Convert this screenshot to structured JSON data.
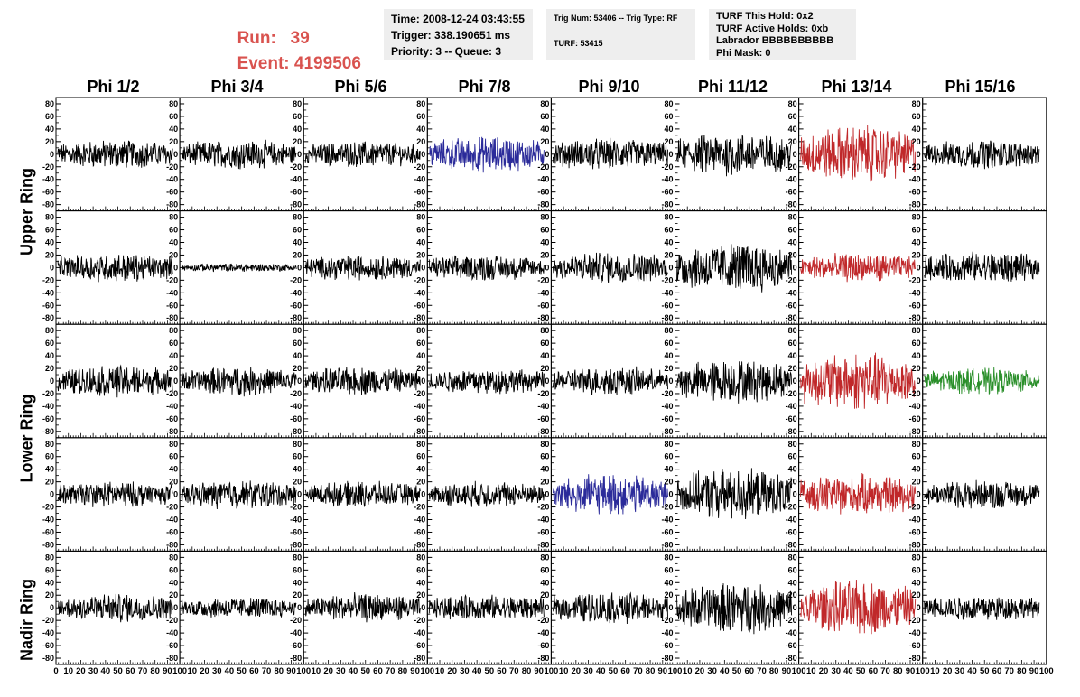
{
  "header": {
    "run_label": "Run:",
    "run_value": "39",
    "event_label": "Event:",
    "event_value": "4199506"
  },
  "info": {
    "time": "Time: 2008-12-24 03:43:55",
    "trigger": "Trigger: 338.190651 ms",
    "priority": "Priority: 3 -- Queue: 3",
    "trig_num": "Trig Num: 53406 -- Trig Type: RF",
    "turf": "TURF: 53415",
    "turf_hold": "TURF This Hold: 0x2",
    "turf_active": "TURF Active Holds: 0xb",
    "labrador": "Labrador BBBBBBBBBB",
    "phi_mask": "Phi Mask: 0"
  },
  "colors": {
    "default": "#000000",
    "blue": "#2b2b9a",
    "red": "#c0282a",
    "green": "#2a8f2a",
    "header_red": "#d9534f"
  },
  "chart_data": {
    "type": "line",
    "columns": [
      "Phi 1/2",
      "Phi 3/4",
      "Phi 5/6",
      "Phi 7/8",
      "Phi 9/10",
      "Phi 11/12",
      "Phi 13/14",
      "Phi 15/16"
    ],
    "rows": [
      "Upper Ring",
      "Upper Ring",
      "Lower Ring",
      "Lower Ring",
      "Nadir Ring"
    ],
    "row_labels": [
      "Upper Ring",
      "Lower Ring",
      "Nadir Ring"
    ],
    "ylim": [
      -90,
      90
    ],
    "yticks": [
      -80,
      -60,
      -40,
      -20,
      0,
      20,
      40,
      60,
      80
    ],
    "xlim": [
      0,
      100
    ],
    "xtick_labels": [
      "0",
      "10",
      "20",
      "30",
      "40",
      "50",
      "60",
      "70",
      "80",
      "90",
      "100"
    ],
    "panel_colors": [
      [
        "default",
        "default",
        "default",
        "blue",
        "default",
        "default",
        "red",
        "default"
      ],
      [
        "default",
        "default",
        "default",
        "default",
        "default",
        "default",
        "red",
        "default"
      ],
      [
        "default",
        "default",
        "default",
        "default",
        "default",
        "default",
        "red",
        "green"
      ],
      [
        "default",
        "default",
        "default",
        "default",
        "blue",
        "default",
        "red",
        "default"
      ],
      [
        "default",
        "default",
        "default",
        "default",
        "default",
        "default",
        "red",
        "default"
      ]
    ],
    "panel_amplitude": [
      [
        20,
        20,
        18,
        25,
        22,
        30,
        40,
        20
      ],
      [
        20,
        6,
        18,
        18,
        22,
        35,
        20,
        22
      ],
      [
        22,
        20,
        20,
        18,
        20,
        30,
        40,
        18
      ],
      [
        18,
        20,
        18,
        18,
        28,
        35,
        28,
        20
      ],
      [
        20,
        15,
        20,
        18,
        22,
        35,
        38,
        18
      ]
    ]
  }
}
